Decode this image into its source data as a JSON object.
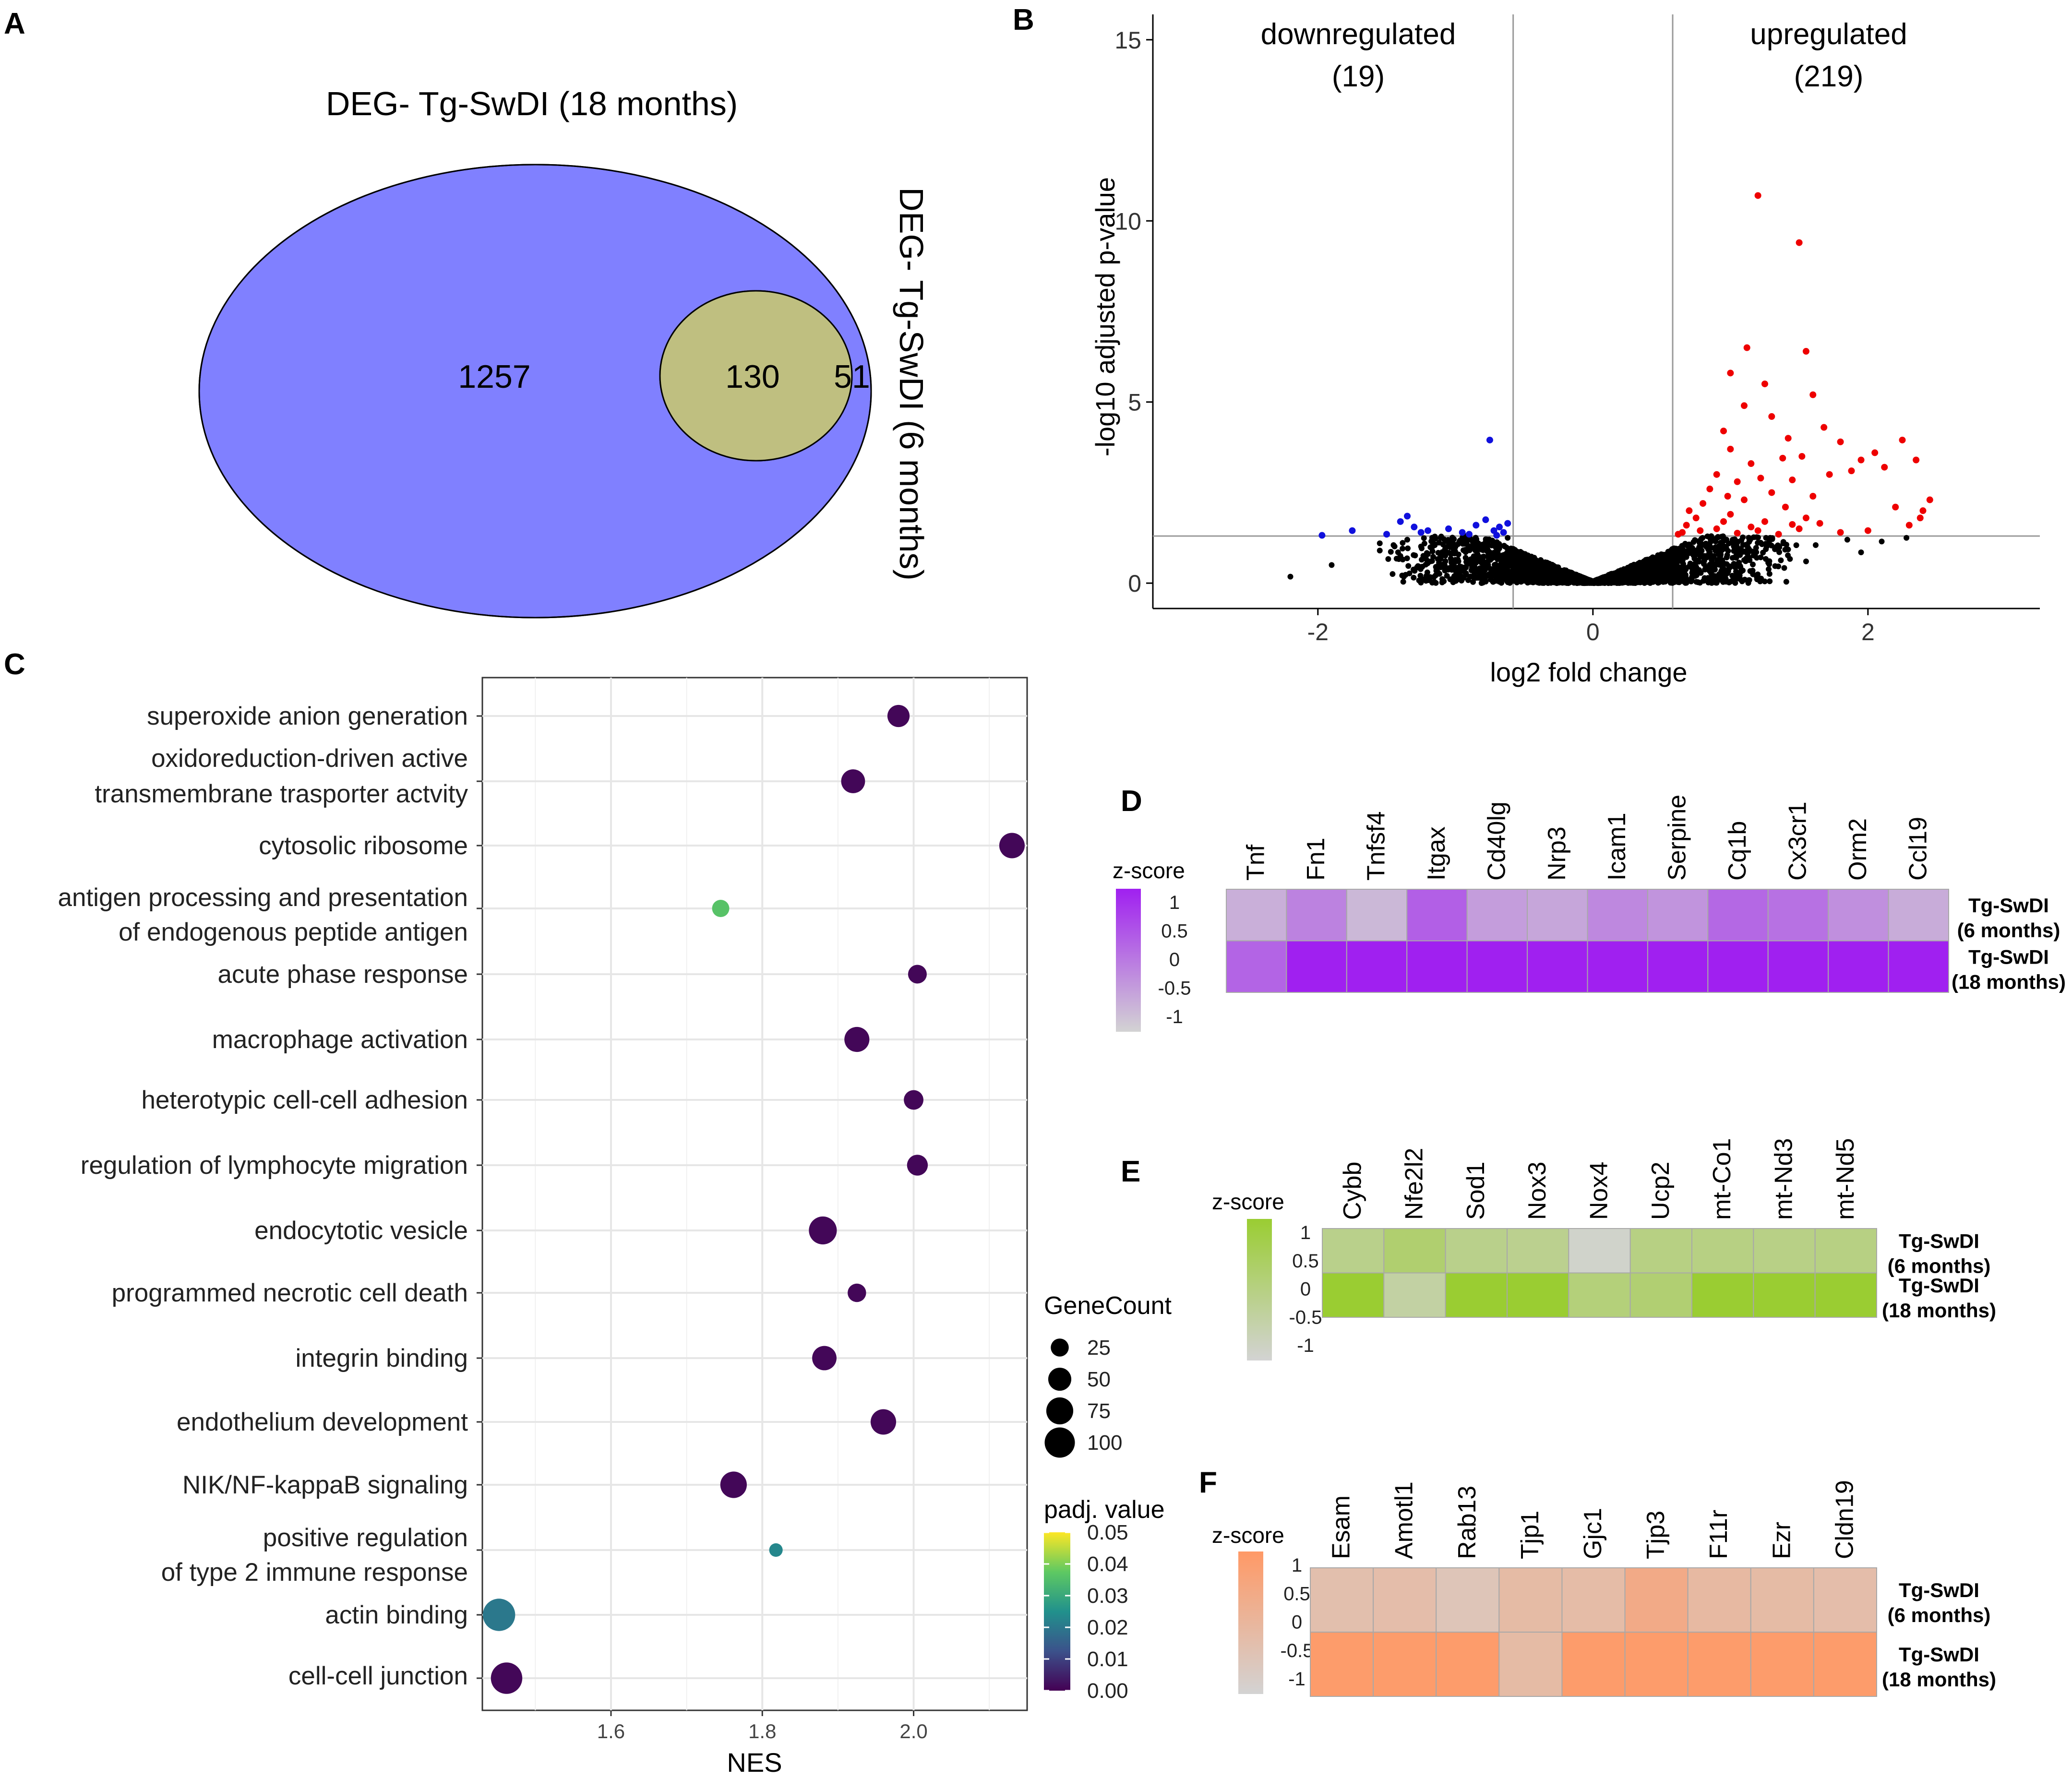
{
  "panels": {
    "a": "A",
    "b": "B",
    "c": "C",
    "d": "D",
    "e": "E",
    "f": "F"
  },
  "chart_data": [
    {
      "id": "A",
      "type": "venn",
      "sets": [
        {
          "label": "DEG- Tg-SwDI (18 months)",
          "color": "#8080ff"
        },
        {
          "label": "DEG- Tg-SwDI (6 months)",
          "color": "#ffff80"
        }
      ],
      "regions": {
        "only_18": 1257,
        "overlap": 130,
        "only_6": 51
      },
      "overlap_color": "#bfbf80"
    },
    {
      "id": "B",
      "type": "scatter",
      "xlabel": "log2 fold change",
      "ylabel": "-log10 adjusted p-value",
      "xlim": [
        -3.2,
        3.25
      ],
      "ylim": [
        -0.7,
        15.7
      ],
      "xticks": [
        -2,
        0,
        2
      ],
      "yticks": [
        0,
        5,
        10,
        15
      ],
      "xtick_labels": [
        "-2",
        "0",
        "2"
      ],
      "ytick_labels": [
        "0",
        "5",
        "10",
        "15"
      ],
      "fc_threshold": 0.58,
      "p_threshold": 1.3,
      "annotations": {
        "down_label": "downregulated",
        "down_count": "(19)",
        "up_label": "upregulated",
        "up_count": "(219)"
      },
      "colors": {
        "down": "#1010dd",
        "up": "#ee0000",
        "ns": "#000000"
      },
      "down_points": [
        [
          -1.97,
          1.32
        ],
        [
          -1.75,
          1.45
        ],
        [
          -1.5,
          1.35
        ],
        [
          -1.4,
          1.7
        ],
        [
          -1.35,
          1.85
        ],
        [
          -1.3,
          1.55
        ],
        [
          -1.2,
          1.45
        ],
        [
          -1.05,
          1.5
        ],
        [
          -0.95,
          1.4
        ],
        [
          -0.85,
          1.6
        ],
        [
          -0.78,
          1.75
        ],
        [
          -0.72,
          1.45
        ],
        [
          -0.68,
          1.55
        ],
        [
          -0.65,
          1.4
        ],
        [
          -0.75,
          3.95
        ],
        [
          -0.9,
          1.35
        ],
        [
          -1.25,
          1.4
        ],
        [
          -0.62,
          1.65
        ],
        [
          -0.7,
          1.32
        ]
      ],
      "up_points": [
        [
          1.2,
          10.7
        ],
        [
          1.5,
          9.4
        ],
        [
          1.12,
          6.5
        ],
        [
          1.55,
          6.4
        ],
        [
          1.0,
          5.8
        ],
        [
          1.25,
          5.5
        ],
        [
          1.6,
          5.2
        ],
        [
          1.1,
          4.9
        ],
        [
          1.3,
          4.6
        ],
        [
          1.68,
          4.3
        ],
        [
          0.95,
          4.2
        ],
        [
          1.42,
          4.0
        ],
        [
          1.8,
          3.9
        ],
        [
          2.25,
          3.95
        ],
        [
          2.05,
          3.6
        ],
        [
          1.0,
          3.7
        ],
        [
          1.15,
          3.3
        ],
        [
          1.38,
          3.45
        ],
        [
          1.52,
          3.5
        ],
        [
          1.95,
          3.4
        ],
        [
          2.35,
          3.4
        ],
        [
          1.88,
          3.1
        ],
        [
          2.12,
          3.2
        ],
        [
          2.4,
          2.0
        ],
        [
          2.45,
          2.3
        ],
        [
          2.2,
          2.1
        ],
        [
          1.72,
          3.0
        ],
        [
          0.9,
          3.0
        ],
        [
          1.05,
          2.8
        ],
        [
          1.22,
          2.9
        ],
        [
          1.45,
          2.85
        ],
        [
          0.85,
          2.6
        ],
        [
          0.98,
          2.4
        ],
        [
          1.3,
          2.5
        ],
        [
          1.6,
          2.4
        ],
        [
          0.8,
          2.2
        ],
        [
          1.1,
          2.3
        ],
        [
          1.4,
          2.1
        ],
        [
          0.7,
          2.0
        ],
        [
          0.75,
          1.8
        ],
        [
          1.0,
          1.9
        ],
        [
          1.25,
          1.7
        ],
        [
          1.55,
          1.8
        ],
        [
          0.68,
          1.6
        ],
        [
          0.9,
          1.5
        ],
        [
          1.2,
          1.45
        ],
        [
          1.5,
          1.5
        ],
        [
          1.8,
          1.4
        ],
        [
          0.65,
          1.4
        ],
        [
          2.0,
          1.45
        ],
        [
          2.3,
          1.6
        ],
        [
          2.38,
          1.8
        ],
        [
          0.62,
          1.35
        ],
        [
          0.95,
          1.7
        ],
        [
          1.35,
          1.35
        ],
        [
          1.65,
          1.65
        ],
        [
          1.15,
          1.55
        ],
        [
          0.78,
          1.45
        ],
        [
          1.05,
          1.38
        ],
        [
          1.45,
          1.62
        ]
      ],
      "ns_points": [
        [
          -2.2,
          0.18
        ],
        [
          -1.9,
          0.5
        ],
        [
          -1.55,
          0.9
        ],
        [
          -1.45,
          1.05
        ],
        [
          -1.4,
          0.75
        ],
        [
          -1.35,
          1.2
        ],
        [
          -1.55,
          1.1
        ],
        [
          -1.0,
          1.0
        ],
        [
          -1.2,
          0.8
        ],
        [
          1.62,
          1.05
        ],
        [
          1.85,
          1.2
        ],
        [
          2.1,
          1.15
        ],
        [
          2.28,
          1.25
        ],
        [
          1.95,
          0.85
        ],
        [
          1.55,
          0.6
        ],
        [
          -0.9,
          1.2
        ],
        [
          -0.62,
          1.25
        ]
      ]
    },
    {
      "id": "C",
      "type": "scatter",
      "subtype": "dotplot",
      "xlabel": "NES",
      "xlim": [
        1.43,
        2.15
      ],
      "xticks": [
        1.6,
        1.8,
        2.0
      ],
      "xtick_labels": [
        "1.6",
        "1.8",
        "2.0"
      ],
      "categories": [
        {
          "line1": "superoxide anion generation",
          "line2": "",
          "nes": 1.98,
          "count": 45,
          "padj": 0.001
        },
        {
          "line1": "oxidoreduction-driven active",
          "line2": "transmembrane trasporter actvity",
          "nes": 1.92,
          "count": 55,
          "padj": 0.001
        },
        {
          "line1": "cytosolic ribosome",
          "line2": "",
          "nes": 2.13,
          "count": 65,
          "padj": 0.001
        },
        {
          "line1": "antigen processing and presentation",
          "line2": "of endogenous peptide antigen",
          "nes": 1.745,
          "count": 22,
          "padj": 0.036
        },
        {
          "line1": "acute phase response",
          "line2": "",
          "nes": 2.005,
          "count": 28,
          "padj": 0.001
        },
        {
          "line1": "macrophage activation",
          "line2": "",
          "nes": 1.925,
          "count": 62,
          "padj": 0.001
        },
        {
          "line1": "heterotypic cell-cell adhesion",
          "line2": "",
          "nes": 2.0,
          "count": 32,
          "padj": 0.001
        },
        {
          "line1": "regulation of lymphocyte migration",
          "line2": "",
          "nes": 2.005,
          "count": 38,
          "padj": 0.001
        },
        {
          "line1": "endocytotic vesicle",
          "line2": "",
          "nes": 1.88,
          "count": 82,
          "padj": 0.001
        },
        {
          "line1": "programmed necrotic cell death",
          "line2": "",
          "nes": 1.925,
          "count": 27,
          "padj": 0.001
        },
        {
          "line1": "integrin binding",
          "line2": "",
          "nes": 1.882,
          "count": 58,
          "padj": 0.001
        },
        {
          "line1": "endothelium development",
          "line2": "",
          "nes": 1.96,
          "count": 65,
          "padj": 0.001
        },
        {
          "line1": "NIK/NF-kappaB signaling",
          "line2": "",
          "nes": 1.762,
          "count": 72,
          "padj": 0.001
        },
        {
          "line1": "positive regulation",
          "line2": "of type 2 immune response",
          "nes": 1.818,
          "count": 10,
          "padj": 0.023
        },
        {
          "line1": "actin binding",
          "line2": "",
          "nes": 1.452,
          "count": 118,
          "padj": 0.02
        },
        {
          "line1": "cell-cell junction",
          "line2": "",
          "nes": 1.462,
          "count": 110,
          "padj": 0.001
        }
      ],
      "size_legend": {
        "title": "GeneCount",
        "values": [
          25,
          50,
          75,
          100
        ],
        "labels": [
          "25",
          "50",
          "75",
          "100"
        ]
      },
      "color_legend": {
        "title": "padj. value",
        "ticks": [
          0.05,
          0.04,
          0.03,
          0.02,
          0.01,
          0.0
        ],
        "tick_labels": [
          "0.05",
          "0.04",
          "0.03",
          "0.02",
          "0.01",
          "0.00"
        ],
        "palette": [
          "#440154",
          "#3b528b",
          "#21918c",
          "#5ec962",
          "#fde725"
        ]
      }
    },
    {
      "id": "D",
      "type": "heatmap",
      "legend_title": "z-score",
      "legend_labels": [
        "1",
        "0.5",
        "0",
        "-0.5",
        "-1"
      ],
      "low_color": "#d3d3d3",
      "high_color": "#a020f0",
      "columns": [
        "Tnf",
        "Fn1",
        "Tnfsf4",
        "Itgax",
        "Cd40lg",
        "Nrp3",
        "Icam1",
        "Serpine",
        "Cq1b",
        "Cx3cr1",
        "Orm2",
        "Ccl19"
      ],
      "rows": [
        {
          "line1": "Tg-SwDI",
          "line2": "(6 months)",
          "values": [
            0.2,
            0.45,
            0.15,
            0.65,
            0.3,
            0.25,
            0.42,
            0.35,
            0.6,
            0.55,
            0.38,
            0.22
          ]
        },
        {
          "line1": "Tg-SwDI",
          "line2": "(18 months)",
          "values": [
            0.62,
            1.0,
            1.0,
            1.0,
            1.0,
            1.0,
            1.0,
            1.0,
            1.0,
            1.0,
            1.0,
            1.0
          ]
        }
      ]
    },
    {
      "id": "E",
      "type": "heatmap",
      "legend_title": "z-score",
      "legend_labels": [
        "1",
        "0.5",
        "0",
        "-0.5",
        "-1"
      ],
      "low_color": "#d3d3d3",
      "high_color": "#9acd32",
      "columns": [
        "Cybb",
        "Nfe2l2",
        "Sod1",
        "Nox3",
        "Nox4",
        "Ucp2",
        "mt-Co1",
        "mt-Nd3",
        "mt-Nd5"
      ],
      "rows": [
        {
          "line1": "Tg-SwDI",
          "line2": "(6 months)",
          "values": [
            0.45,
            0.62,
            0.45,
            0.42,
            0.05,
            0.5,
            0.5,
            0.48,
            0.5
          ]
        },
        {
          "line1": "Tg-SwDI",
          "line2": "(18 months)",
          "values": [
            1.0,
            0.3,
            1.0,
            1.0,
            0.55,
            0.6,
            1.0,
            1.0,
            1.0
          ]
        }
      ]
    },
    {
      "id": "F",
      "type": "heatmap",
      "legend_title": "z-score",
      "legend_labels": [
        "1",
        "0.5",
        "0",
        "-0.5",
        "-1"
      ],
      "low_color": "#d3d3d3",
      "high_color": "#ff9966",
      "columns": [
        "Esam",
        "Amotl1",
        "Rab13",
        "Tjp1",
        "Gjc1",
        "Tjp3",
        "F11r",
        "Ezr",
        "Cldn19"
      ],
      "rows": [
        {
          "line1": "Tg-SwDI",
          "line2": "(6 months)",
          "values": [
            0.35,
            0.38,
            0.25,
            0.42,
            0.4,
            0.7,
            0.45,
            0.42,
            0.38
          ]
        },
        {
          "line1": "Tg-SwDI",
          "line2": "(18 months)",
          "values": [
            0.95,
            0.95,
            0.95,
            0.42,
            0.95,
            0.95,
            0.95,
            0.95,
            0.95
          ]
        }
      ]
    }
  ]
}
